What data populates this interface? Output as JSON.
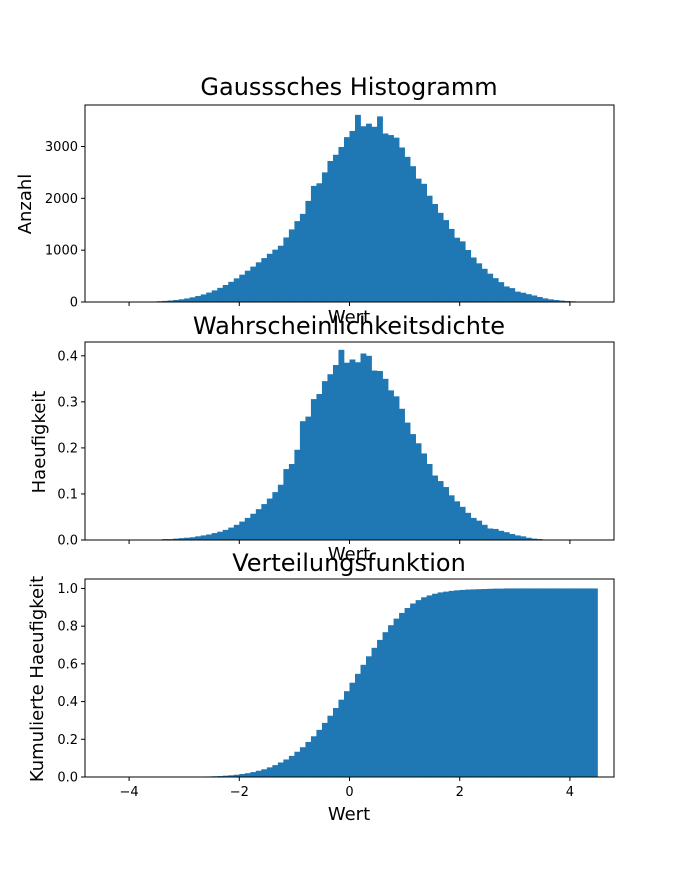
{
  "chart_data": [
    {
      "type": "bar",
      "title": "Gausssches Histogramm",
      "xlabel": "Wert",
      "ylabel": "Anzahl",
      "xlim": [
        -4.8,
        4.8
      ],
      "ylim": [
        0,
        3800
      ],
      "x_ticks": [
        -4,
        -2,
        0,
        2,
        4
      ],
      "x_tick_labels": [],
      "y_ticks": [
        0,
        1000,
        2000,
        3000
      ],
      "y_tick_labels": [
        "0",
        "1000",
        "2000",
        "3000"
      ],
      "bin_start": -4.3,
      "bin_width": 0.1,
      "values": [
        1,
        1,
        2,
        2,
        4,
        5,
        7,
        10,
        15,
        21,
        29,
        39,
        52,
        69,
        90,
        115,
        146,
        182,
        224,
        273,
        328,
        389,
        456,
        527,
        604,
        683,
        765,
        847,
        930,
        1010,
        1086,
        1245,
        1400,
        1560,
        1700,
        1950,
        2240,
        2290,
        2500,
        2720,
        2840,
        2990,
        3180,
        3300,
        3610,
        3390,
        3440,
        3380,
        3580,
        3250,
        3220,
        3170,
        2980,
        2800,
        2620,
        2380,
        2280,
        2050,
        1890,
        1720,
        1580,
        1410,
        1240,
        1170,
        1003,
        859,
        746,
        640,
        546,
        460,
        383,
        300,
        268,
        200,
        179,
        151,
        126,
        97,
        70,
        52,
        38,
        28,
        20,
        14,
        9,
        6,
        4,
        3,
        2,
        1
      ],
      "grid": false
    },
    {
      "type": "bar",
      "title": "Wahrscheinlichkeitsdichte",
      "xlabel": "Wert",
      "ylabel": "Haeufigkeit",
      "xlim": [
        -4.8,
        4.8
      ],
      "ylim": [
        0,
        0.43
      ],
      "x_ticks": [
        -4,
        -2,
        0,
        2,
        4
      ],
      "x_tick_labels": [],
      "y_ticks": [
        0,
        0.1,
        0.2,
        0.3,
        0.4
      ],
      "y_tick_labels": [
        "0.0",
        "0.1",
        "0.2",
        "0.3",
        "0.4"
      ],
      "bin_start": -3.6,
      "bin_width": 0.1,
      "values": [
        0.001,
        0.001,
        0.002,
        0.002,
        0.003,
        0.004,
        0.005,
        0.006,
        0.008,
        0.01,
        0.012,
        0.015,
        0.018,
        0.022,
        0.027,
        0.033,
        0.04,
        0.048,
        0.057,
        0.067,
        0.078,
        0.09,
        0.104,
        0.12,
        0.154,
        0.165,
        0.196,
        0.258,
        0.268,
        0.306,
        0.317,
        0.345,
        0.36,
        0.38,
        0.413,
        0.385,
        0.392,
        0.386,
        0.405,
        0.4,
        0.368,
        0.367,
        0.35,
        0.325,
        0.312,
        0.285,
        0.255,
        0.23,
        0.21,
        0.188,
        0.165,
        0.14,
        0.128,
        0.115,
        0.097,
        0.084,
        0.072,
        0.059,
        0.048,
        0.042,
        0.033,
        0.025,
        0.024,
        0.02,
        0.017,
        0.013,
        0.01,
        0.008,
        0.005,
        0.003,
        0.002,
        0.001,
        0.001,
        0.001,
        0.001,
        0.001,
        0.001,
        0.001
      ],
      "grid": false
    },
    {
      "type": "bar",
      "title": "Verteilungsfunktion",
      "xlabel": "Wert",
      "ylabel": "Kumulierte Haeufigkeit",
      "xlim": [
        -4.8,
        4.8
      ],
      "ylim": [
        0,
        1.05
      ],
      "x_ticks": [
        -4,
        -2,
        0,
        2,
        4
      ],
      "x_tick_labels": [
        "−4",
        "−2",
        "0",
        "2",
        "4"
      ],
      "y_ticks": [
        0,
        0.2,
        0.4,
        0.6,
        0.8,
        1.0
      ],
      "y_tick_labels": [
        "0.0",
        "0.2",
        "0.4",
        "0.6",
        "0.8",
        "1.0"
      ],
      "bin_start": -4.3,
      "bin_width": 0.1,
      "values": [
        0.0,
        0.0,
        0.0,
        0.0,
        0.0,
        0.0,
        0.0,
        0.0,
        0.0,
        0.0,
        0.0,
        0.0,
        0.0,
        0.0,
        0.0,
        0.001,
        0.002,
        0.003,
        0.004,
        0.005,
        0.007,
        0.009,
        0.012,
        0.016,
        0.02,
        0.026,
        0.033,
        0.041,
        0.051,
        0.063,
        0.077,
        0.093,
        0.112,
        0.134,
        0.158,
        0.186,
        0.216,
        0.25,
        0.287,
        0.325,
        0.366,
        0.41,
        0.455,
        0.5,
        0.547,
        0.595,
        0.64,
        0.685,
        0.727,
        0.768,
        0.805,
        0.84,
        0.87,
        0.896,
        0.92,
        0.938,
        0.953,
        0.963,
        0.972,
        0.979,
        0.983,
        0.987,
        0.99,
        0.992,
        0.994,
        0.995,
        0.996,
        0.997,
        0.998,
        0.999,
        0.999,
        1.0,
        1.0,
        1.0,
        1.0,
        1.0,
        1.0,
        1.0,
        1.0,
        1.0,
        1.0,
        1.0,
        1.0,
        1.0,
        1.0,
        1.0,
        1.0,
        1.0
      ],
      "grid": false
    }
  ],
  "colors": {
    "bar": "#1f77b4",
    "axes": "#000000",
    "background": "#ffffff"
  }
}
